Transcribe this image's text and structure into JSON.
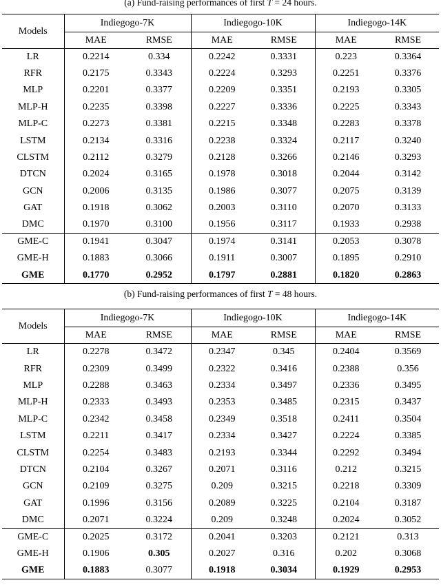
{
  "page": {
    "background": "#ffffff",
    "text_color": "#000000"
  },
  "tables": [
    {
      "caption": {
        "prefix": "(a) Fund-raising performances of first ",
        "symbol": "T",
        "suffix": " = 24 hours."
      },
      "headers": {
        "models": "Models",
        "groups": [
          "Indiegogo-7K",
          "Indiegogo-10K",
          "Indiegogo-14K"
        ],
        "metrics": [
          "MAE",
          "RMSE",
          "MAE",
          "RMSE",
          "MAE",
          "RMSE"
        ]
      },
      "rows": [
        {
          "model": "LR",
          "values": [
            "0.2214",
            "0.334",
            "0.2242",
            "0.3331",
            "0.223",
            "0.3364"
          ]
        },
        {
          "model": "RFR",
          "values": [
            "0.2175",
            "0.3343",
            "0.2224",
            "0.3293",
            "0.2251",
            "0.3376"
          ]
        },
        {
          "model": "MLP",
          "values": [
            "0.2201",
            "0.3377",
            "0.2209",
            "0.3351",
            "0.2193",
            "0.3305"
          ]
        },
        {
          "model": "MLP-H",
          "values": [
            "0.2235",
            "0.3398",
            "0.2227",
            "0.3336",
            "0.2225",
            "0.3343"
          ]
        },
        {
          "model": "MLP-C",
          "values": [
            "0.2273",
            "0.3381",
            "0.2215",
            "0.3348",
            "0.2283",
            "0.3378"
          ]
        },
        {
          "model": "LSTM",
          "values": [
            "0.2134",
            "0.3316",
            "0.2238",
            "0.3324",
            "0.2117",
            "0.3240"
          ]
        },
        {
          "model": "CLSTM",
          "values": [
            "0.2112",
            "0.3279",
            "0.2128",
            "0.3266",
            "0.2146",
            "0.3293"
          ]
        },
        {
          "model": "DTCN",
          "values": [
            "0.2024",
            "0.3165",
            "0.1978",
            "0.3018",
            "0.2044",
            "0.3142"
          ]
        },
        {
          "model": "GCN",
          "values": [
            "0.2006",
            "0.3135",
            "0.1986",
            "0.3077",
            "0.2075",
            "0.3139"
          ]
        },
        {
          "model": "GAT",
          "values": [
            "0.1918",
            "0.3062",
            "0.2003",
            "0.3110",
            "0.2070",
            "0.3133"
          ]
        },
        {
          "model": "DMC",
          "values": [
            "0.1970",
            "0.3100",
            "0.1956",
            "0.3117",
            "0.1933",
            "0.2938"
          ]
        },
        {
          "model": "GME-C",
          "separator_above": true,
          "values": [
            "0.1941",
            "0.3047",
            "0.1974",
            "0.3141",
            "0.2053",
            "0.3078"
          ]
        },
        {
          "model": "GME-H",
          "values": [
            "0.1883",
            "0.3066",
            "0.1911",
            "0.3007",
            "0.1895",
            "0.2910"
          ]
        },
        {
          "model": "GME",
          "model_bold": true,
          "values": [
            "0.1770",
            "0.2952",
            "0.1797",
            "0.2881",
            "0.1820",
            "0.2863"
          ],
          "bold": [
            true,
            true,
            true,
            true,
            true,
            true
          ]
        }
      ]
    },
    {
      "caption": {
        "prefix": "(b) Fund-raising performances of first ",
        "symbol": "T",
        "suffix": " = 48 hours."
      },
      "headers": {
        "models": "Models",
        "groups": [
          "Indiegogo-7K",
          "Indiegogo-10K",
          "Indiegogo-14K"
        ],
        "metrics": [
          "MAE",
          "RMSE",
          "MAE",
          "RMSE",
          "MAE",
          "RMSE"
        ]
      },
      "rows": [
        {
          "model": "LR",
          "values": [
            "0.2278",
            "0.3472",
            "0.2347",
            "0.345",
            "0.2404",
            "0.3569"
          ]
        },
        {
          "model": "RFR",
          "values": [
            "0.2309",
            "0.3499",
            "0.2322",
            "0.3416",
            "0.2388",
            "0.356"
          ]
        },
        {
          "model": "MLP",
          "values": [
            "0.2288",
            "0.3463",
            "0.2334",
            "0.3497",
            "0.2336",
            "0.3495"
          ]
        },
        {
          "model": "MLP-H",
          "values": [
            "0.2333",
            "0.3493",
            "0.2353",
            "0.3485",
            "0.2315",
            "0.3437"
          ]
        },
        {
          "model": "MLP-C",
          "values": [
            "0.2342",
            "0.3458",
            "0.2349",
            "0.3518",
            "0.2411",
            "0.3504"
          ]
        },
        {
          "model": "LSTM",
          "values": [
            "0.2211",
            "0.3417",
            "0.2334",
            "0.3427",
            "0.2224",
            "0.3385"
          ]
        },
        {
          "model": "CLSTM",
          "values": [
            "0.2254",
            "0.3483",
            "0.2193",
            "0.3344",
            "0.2292",
            "0.3494"
          ]
        },
        {
          "model": "DTCN",
          "values": [
            "0.2104",
            "0.3267",
            "0.2071",
            "0.3116",
            "0.212",
            "0.3215"
          ]
        },
        {
          "model": "GCN",
          "values": [
            "0.2109",
            "0.3275",
            "0.209",
            "0.3215",
            "0.2218",
            "0.3309"
          ]
        },
        {
          "model": "GAT",
          "values": [
            "0.1996",
            "0.3156",
            "0.2089",
            "0.3225",
            "0.2104",
            "0.3187"
          ]
        },
        {
          "model": "DMC",
          "values": [
            "0.2071",
            "0.3224",
            "0.209",
            "0.3248",
            "0.2024",
            "0.3052"
          ]
        },
        {
          "model": "GME-C",
          "separator_above": true,
          "values": [
            "0.2025",
            "0.3172",
            "0.2041",
            "0.3203",
            "0.2121",
            "0.313"
          ]
        },
        {
          "model": "GME-H",
          "values": [
            "0.1906",
            "0.305",
            "0.2027",
            "0.316",
            "0.202",
            "0.3068"
          ],
          "bold": [
            false,
            true,
            false,
            false,
            false,
            false
          ]
        },
        {
          "model": "GME",
          "model_bold": true,
          "values": [
            "0.1883",
            "0.3077",
            "0.1918",
            "0.3034",
            "0.1929",
            "0.2953"
          ],
          "bold": [
            true,
            false,
            true,
            true,
            true,
            true
          ]
        }
      ]
    }
  ]
}
